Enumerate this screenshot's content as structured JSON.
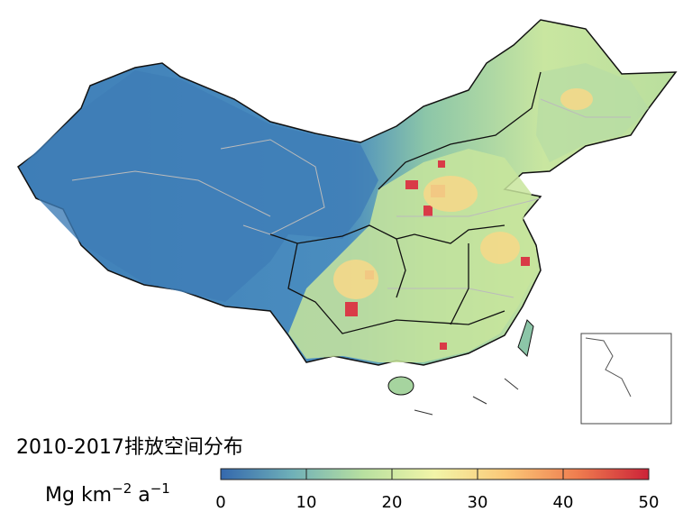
{
  "title": "2010-2017排放空间分布",
  "unit_label": [
    "Mg km",
    "−2",
    " a",
    "−1"
  ],
  "colorbar": {
    "lim": [
      0,
      50
    ],
    "ticks": [
      0,
      10,
      20,
      30,
      40,
      50
    ],
    "colors": [
      "#3468ad",
      "#6fb0b8",
      "#b8e0a0",
      "#f2f5a8",
      "#fbc878",
      "#ef7d4f",
      "#cc2238"
    ]
  }
}
